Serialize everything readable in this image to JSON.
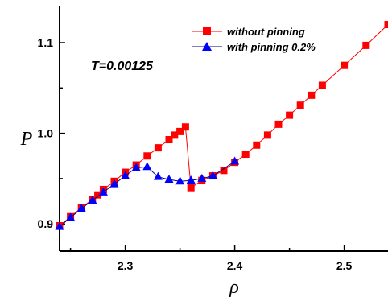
{
  "chart_data": {
    "type": "line",
    "xlabel": "ρ",
    "ylabel": "P",
    "xlim": [
      2.24,
      2.54
    ],
    "ylim": [
      0.87,
      1.14
    ],
    "x_ticks": [
      2.3,
      2.4,
      2.5
    ],
    "x_tick_labels": [
      "2.3",
      "2.4",
      "2.5"
    ],
    "y_ticks": [
      0.9,
      1.0,
      1.1
    ],
    "y_tick_labels": [
      "0.9",
      "1.0",
      "1.1"
    ],
    "annotation": "T=0.00125",
    "legend_position": "top-right",
    "grid": false,
    "series": [
      {
        "name": "without pinning",
        "color": "#ff0000",
        "marker": "square",
        "x": [
          2.24,
          2.25,
          2.26,
          2.27,
          2.275,
          2.28,
          2.29,
          2.3,
          2.31,
          2.32,
          2.33,
          2.34,
          2.345,
          2.35,
          2.355,
          2.36,
          2.37,
          2.38,
          2.39,
          2.4,
          2.41,
          2.42,
          2.43,
          2.44,
          2.45,
          2.46,
          2.47,
          2.48,
          2.5,
          2.52,
          2.54
        ],
        "values": [
          0.898,
          0.908,
          0.918,
          0.927,
          0.932,
          0.938,
          0.947,
          0.957,
          0.965,
          0.975,
          0.984,
          0.993,
          0.998,
          1.002,
          1.007,
          0.94,
          0.948,
          0.953,
          0.959,
          0.968,
          0.977,
          0.987,
          0.998,
          1.01,
          1.02,
          1.031,
          1.042,
          1.053,
          1.075,
          1.097,
          1.12
        ]
      },
      {
        "name": "with pinning 0.2%",
        "color": "#0000ff",
        "marker": "triangle",
        "x": [
          2.24,
          2.25,
          2.26,
          2.27,
          2.28,
          2.29,
          2.3,
          2.31,
          2.32,
          2.33,
          2.34,
          2.35,
          2.36,
          2.37,
          2.38,
          2.4
        ],
        "values": [
          0.897,
          0.907,
          0.917,
          0.926,
          0.935,
          0.944,
          0.953,
          0.962,
          0.963,
          0.952,
          0.949,
          0.947,
          0.948,
          0.95,
          0.953,
          0.969
        ]
      }
    ]
  }
}
